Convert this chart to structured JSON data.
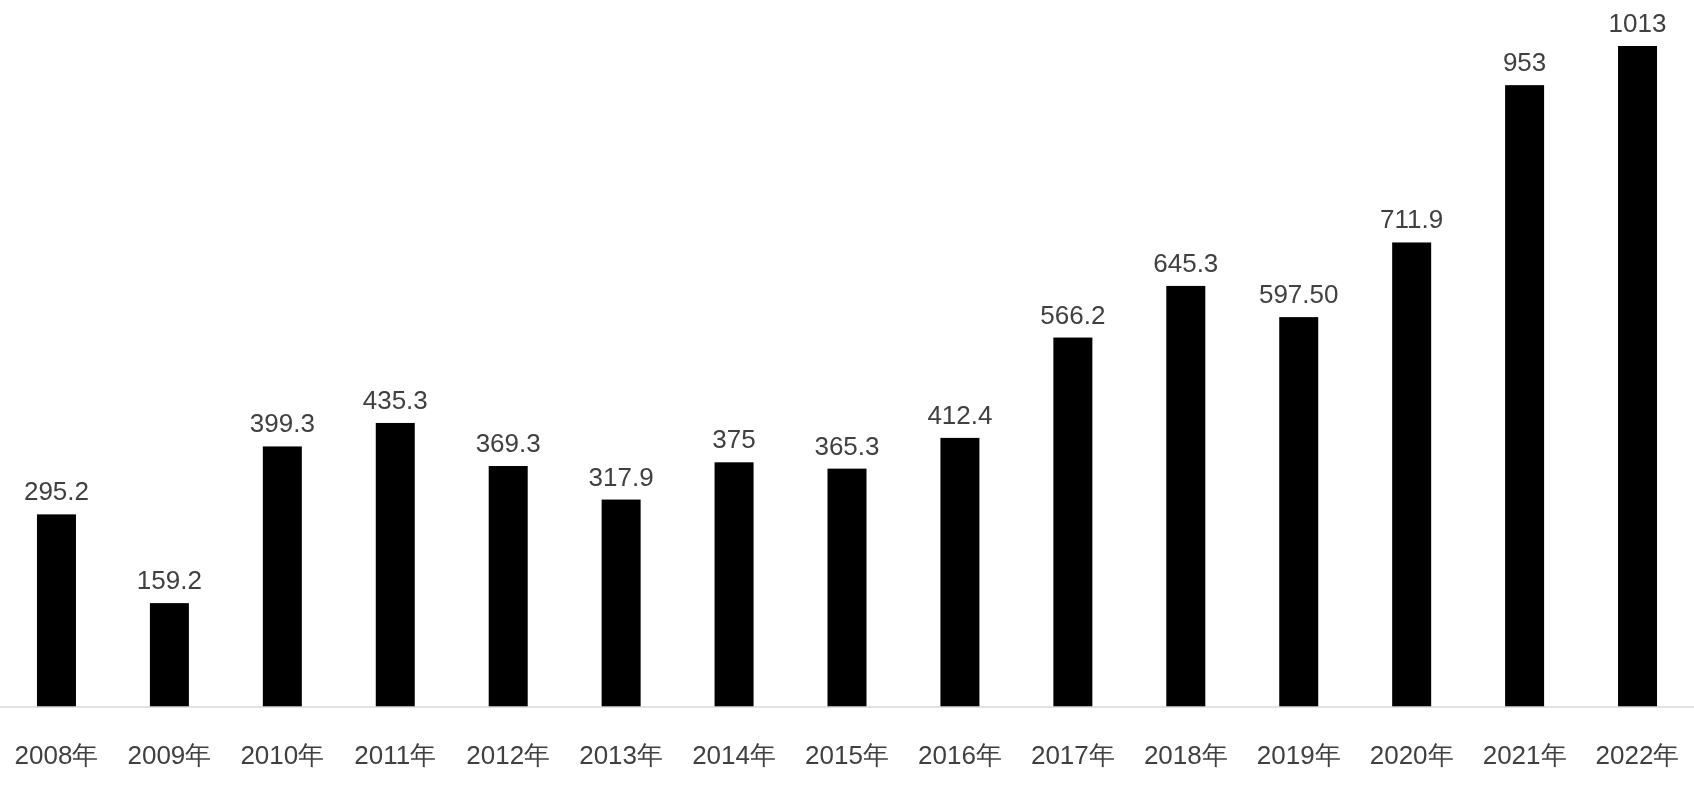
{
  "chart_data": {
    "type": "bar",
    "categories": [
      "2008年",
      "2009年",
      "2010年",
      "2011年",
      "2012年",
      "2013年",
      "2014年",
      "2015年",
      "2016年",
      "2017年",
      "2018年",
      "2019年",
      "2020年",
      "2021年",
      "2022年"
    ],
    "values": [
      295.2,
      159.2,
      399.3,
      435.3,
      369.3,
      317.9,
      375,
      365.3,
      412.4,
      566.2,
      645.3,
      597.5,
      711.9,
      953,
      1013
    ],
    "value_labels": [
      "295.2",
      "159.2",
      "399.3",
      "435.3",
      "369.3",
      "317.9",
      "375",
      "365.3",
      "412.4",
      "566.2",
      "645.3",
      "597.50",
      "711.9",
      "953",
      "1013"
    ],
    "color": "#000000"
  }
}
